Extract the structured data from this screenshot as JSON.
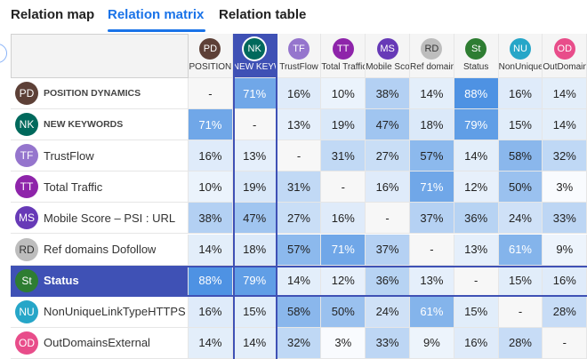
{
  "tabs": [
    {
      "label": "Relation map",
      "active": false
    },
    {
      "label": "Relation matrix",
      "active": true
    },
    {
      "label": "Relation table",
      "active": false
    }
  ],
  "matrix": {
    "columns": [
      {
        "abbr": "PD",
        "label": "POSITION DYNAMICS",
        "color": "#5d4037",
        "text_color": "#ffffff"
      },
      {
        "abbr": "NK",
        "label": "NEW KEYWORDS",
        "color": "#00695c",
        "text_color": "#ffffff"
      },
      {
        "abbr": "TF",
        "label": "TrustFlow",
        "color": "#9575cd",
        "text_color": "#ffffff"
      },
      {
        "abbr": "TT",
        "label": "Total Traffic",
        "color": "#8e24aa",
        "text_color": "#ffffff"
      },
      {
        "abbr": "MS",
        "label": "Mobile Score – PSI : URL",
        "color": "#673ab7",
        "text_color": "#ffffff"
      },
      {
        "abbr": "RD",
        "label": "Ref domains Dofollow",
        "color": "#bdbdbd",
        "text_color": "#333333"
      },
      {
        "abbr": "St",
        "label": "Status",
        "color": "#2e7d32",
        "text_color": "#ffffff"
      },
      {
        "abbr": "NU",
        "label": "NonUniqueLinkTypeHTTPS",
        "color": "#26a6c8",
        "text_color": "#ffffff"
      },
      {
        "abbr": "OD",
        "label": "OutDomainsExternal",
        "color": "#e84d8a",
        "text_color": "#ffffff"
      }
    ],
    "column_labels_shown": [
      "POSITION",
      "NEW KEYW",
      "TrustFlow",
      "Total Traffic",
      "Mobile Score",
      "Ref domains",
      "Status",
      "NonUnique",
      "OutDomains"
    ],
    "rows": [
      {
        "abbr": "PD",
        "label": "POSITION DYNAMICS",
        "color": "#5d4037",
        "text_color": "#ffffff",
        "small_caps": true,
        "values": [
          "-",
          "71%",
          "16%",
          "10%",
          "38%",
          "14%",
          "88%",
          "16%",
          "14%"
        ]
      },
      {
        "abbr": "NK",
        "label": "NEW KEYWORDS",
        "color": "#00695c",
        "text_color": "#ffffff",
        "small_caps": true,
        "values": [
          "71%",
          "-",
          "13%",
          "19%",
          "47%",
          "18%",
          "79%",
          "15%",
          "14%"
        ]
      },
      {
        "abbr": "TF",
        "label": "TrustFlow",
        "color": "#9575cd",
        "text_color": "#ffffff",
        "small_caps": false,
        "values": [
          "16%",
          "13%",
          "-",
          "31%",
          "27%",
          "57%",
          "14%",
          "58%",
          "32%"
        ]
      },
      {
        "abbr": "TT",
        "label": "Total Traffic",
        "color": "#8e24aa",
        "text_color": "#ffffff",
        "small_caps": false,
        "values": [
          "10%",
          "19%",
          "31%",
          "-",
          "16%",
          "71%",
          "12%",
          "50%",
          "3%"
        ]
      },
      {
        "abbr": "MS",
        "label": "Mobile Score – PSI : URL",
        "color": "#673ab7",
        "text_color": "#ffffff",
        "small_caps": false,
        "values": [
          "38%",
          "47%",
          "27%",
          "16%",
          "-",
          "37%",
          "36%",
          "24%",
          "33%"
        ]
      },
      {
        "abbr": "RD",
        "label": "Ref domains Dofollow",
        "color": "#bdbdbd",
        "text_color": "#333333",
        "small_caps": false,
        "values": [
          "14%",
          "18%",
          "57%",
          "71%",
          "37%",
          "-",
          "13%",
          "61%",
          "9%"
        ]
      },
      {
        "abbr": "St",
        "label": "Status",
        "color": "#2e7d32",
        "text_color": "#ffffff",
        "small_caps": false,
        "values": [
          "88%",
          "79%",
          "14%",
          "12%",
          "36%",
          "13%",
          "-",
          "15%",
          "16%"
        ]
      },
      {
        "abbr": "NU",
        "label": "NonUniqueLinkTypeHTTPS",
        "color": "#26a6c8",
        "text_color": "#ffffff",
        "small_caps": false,
        "values": [
          "16%",
          "15%",
          "58%",
          "50%",
          "24%",
          "61%",
          "15%",
          "-",
          "28%"
        ]
      },
      {
        "abbr": "OD",
        "label": "OutDomainsExternal",
        "color": "#e84d8a",
        "text_color": "#ffffff",
        "small_caps": false,
        "values": [
          "14%",
          "14%",
          "32%",
          "3%",
          "33%",
          "9%",
          "16%",
          "28%",
          "-"
        ]
      }
    ],
    "selected_row": 6,
    "selected_column": 1,
    "colors": {
      "selected_header": "#3f51b5",
      "heat_low": "#ffffff",
      "heat_high": "#4a90e2",
      "diagonal": "#f7f7f7"
    }
  }
}
